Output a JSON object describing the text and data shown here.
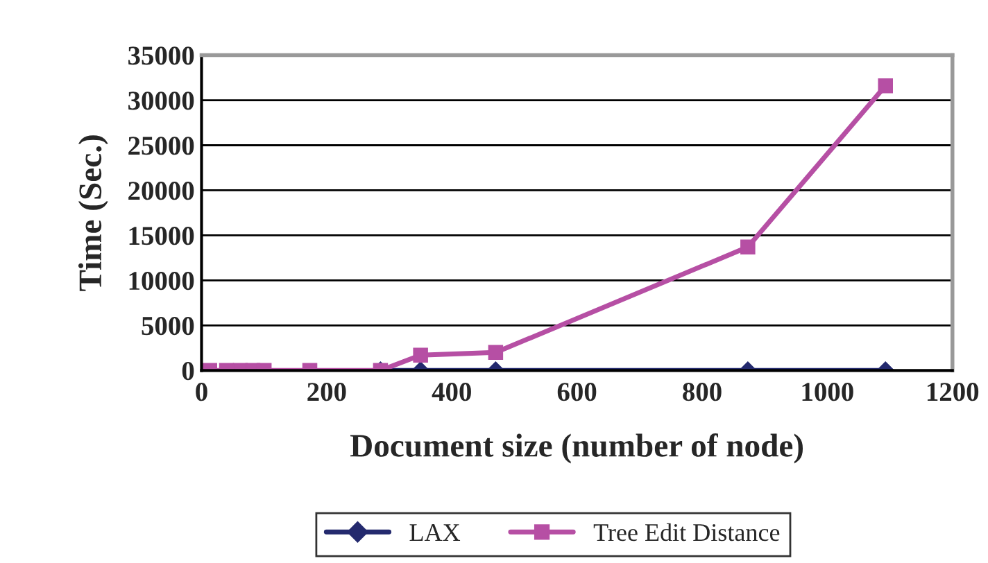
{
  "chart_data": {
    "type": "line",
    "xlabel": "Document size (number of node)",
    "ylabel": "Time (Sec.)",
    "x": [
      13,
      40,
      62,
      82,
      100,
      173,
      286,
      350,
      470,
      873,
      1093
    ],
    "series": [
      {
        "name": "LAX",
        "color": "#242a6e",
        "marker": "diamond",
        "values": [
          null,
          null,
          null,
          null,
          null,
          null,
          0,
          0,
          0,
          0,
          0
        ]
      },
      {
        "name": "Tree Edit Distance",
        "color": "#b64fa4",
        "marker": "square",
        "values": [
          0,
          0,
          0,
          0,
          0,
          0,
          0,
          1700,
          2000,
          13700,
          31600
        ]
      }
    ],
    "xlim": [
      0,
      1200
    ],
    "xticks": [
      0,
      200,
      400,
      600,
      800,
      1000,
      1200
    ],
    "ylim": [
      0,
      35000
    ],
    "yticks": [
      0,
      5000,
      10000,
      15000,
      20000,
      25000,
      30000,
      35000
    ],
    "grid": "y",
    "legend": "bottom"
  }
}
